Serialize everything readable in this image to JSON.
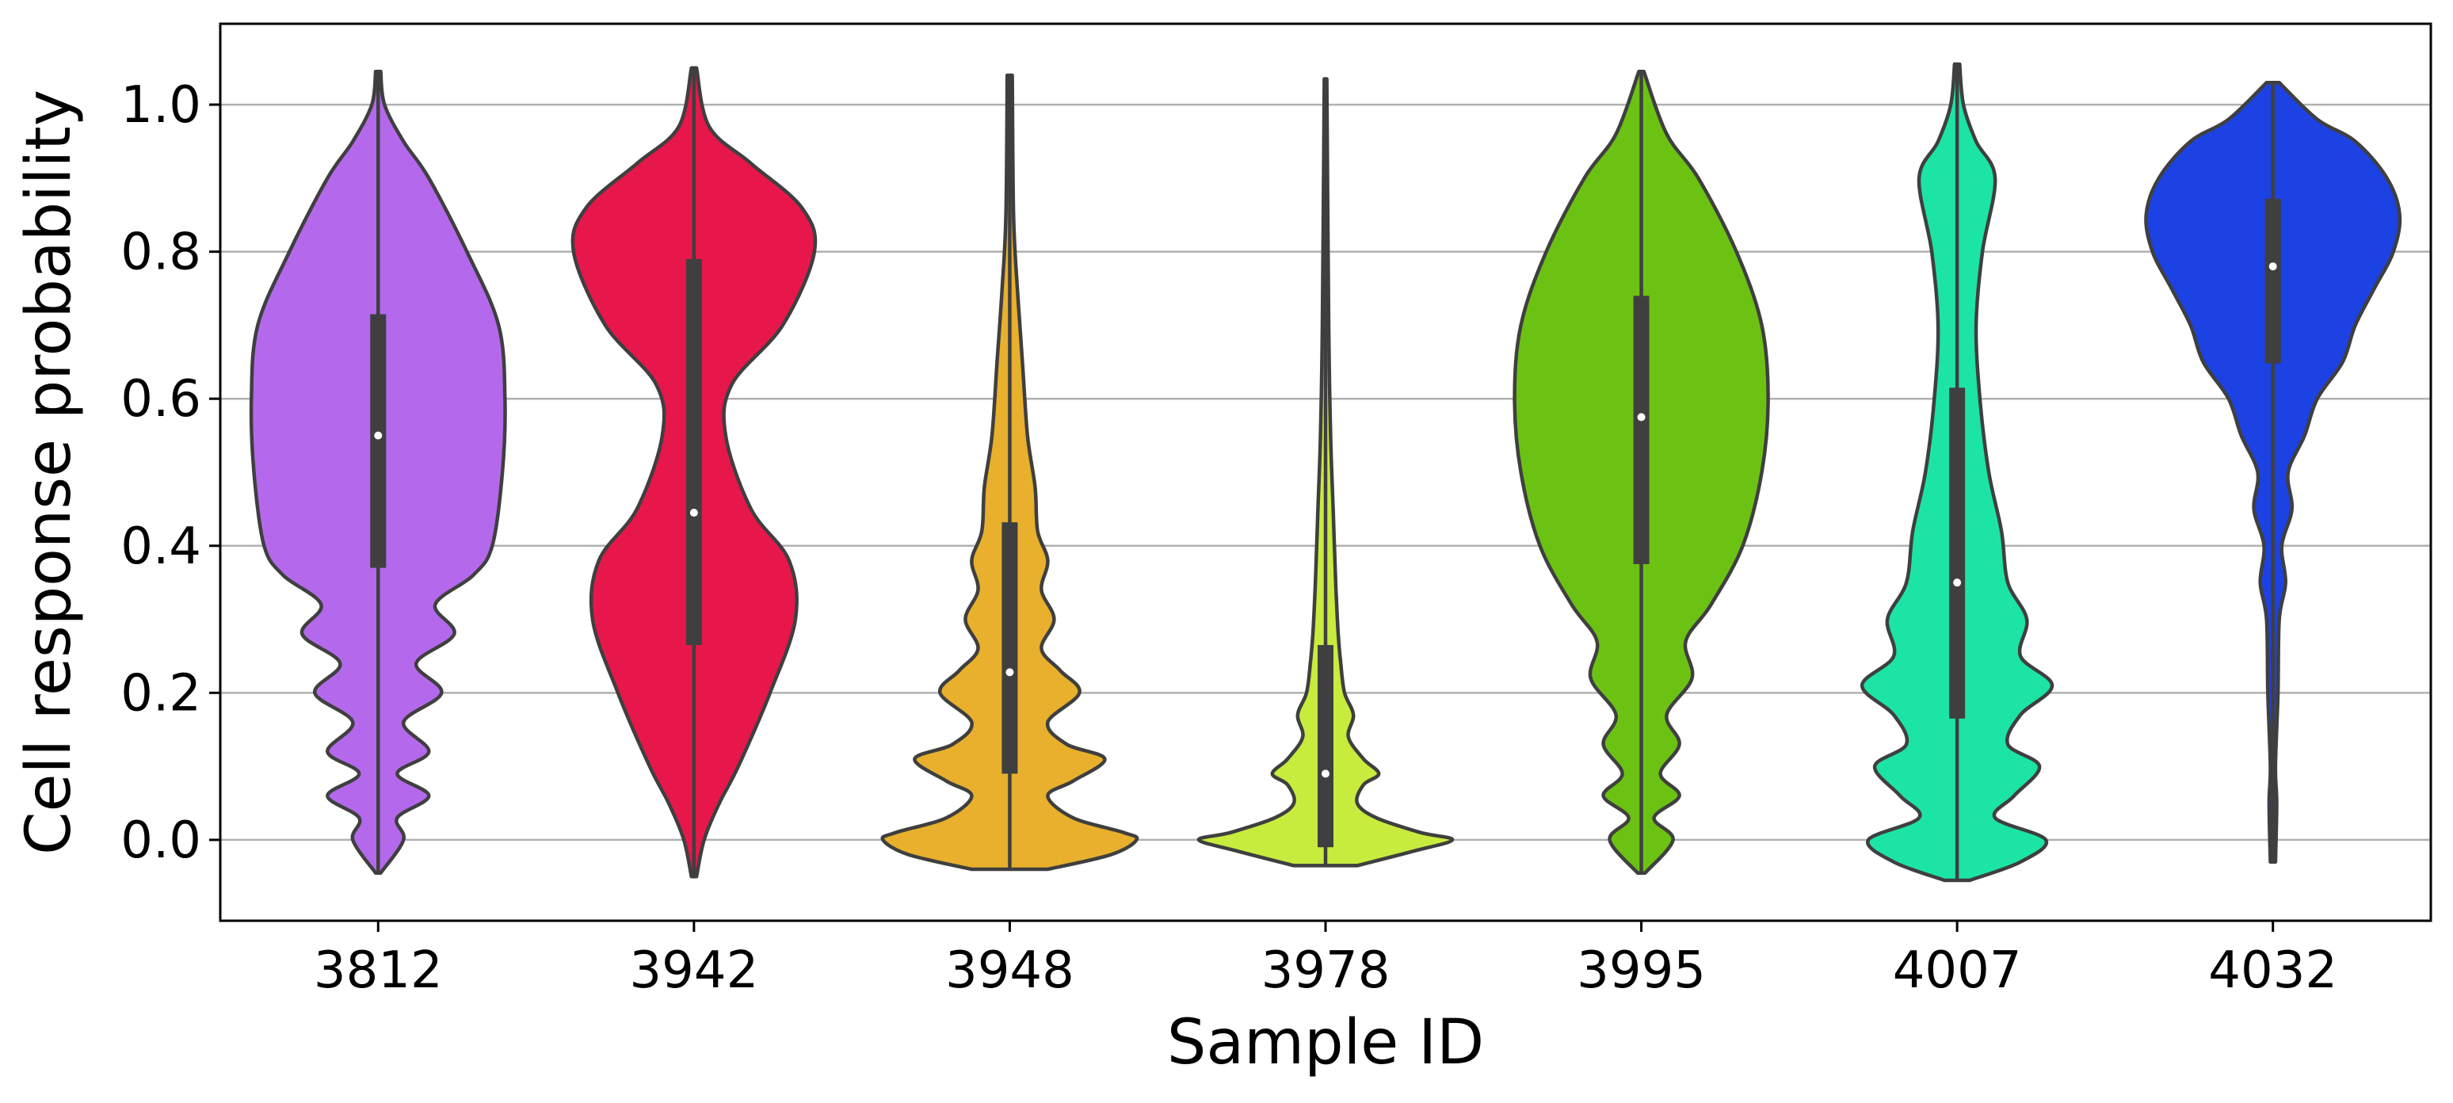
{
  "chart_data": {
    "type": "violin",
    "title": "",
    "xlabel": "Sample ID",
    "ylabel": "Cell response probability",
    "ylim": [
      -0.11,
      1.11
    ],
    "yticks": [
      0.0,
      0.2,
      0.4,
      0.6,
      0.8,
      1.0
    ],
    "ytick_labels": [
      "0.0",
      "0.2",
      "0.4",
      "0.6",
      "0.8",
      "1.0"
    ],
    "grid": "horizontal",
    "legend": "none",
    "categories": [
      "3812",
      "3942",
      "3948",
      "3978",
      "3995",
      "4007",
      "4032"
    ],
    "series": [
      {
        "category": "3812",
        "color": "#b469ec",
        "median": 0.55,
        "q1": 0.37,
        "q3": 0.715,
        "min": -0.045,
        "max": 1.045,
        "density": [
          [
            -0.045,
            0.02
          ],
          [
            0.0,
            0.2
          ],
          [
            0.03,
            0.15
          ],
          [
            0.06,
            0.4
          ],
          [
            0.09,
            0.15
          ],
          [
            0.12,
            0.4
          ],
          [
            0.16,
            0.2
          ],
          [
            0.2,
            0.5
          ],
          [
            0.24,
            0.3
          ],
          [
            0.28,
            0.6
          ],
          [
            0.32,
            0.45
          ],
          [
            0.36,
            0.75
          ],
          [
            0.4,
            0.9
          ],
          [
            0.5,
            0.98
          ],
          [
            0.6,
            1.0
          ],
          [
            0.7,
            0.95
          ],
          [
            0.8,
            0.7
          ],
          [
            0.9,
            0.4
          ],
          [
            0.95,
            0.2
          ],
          [
            1.0,
            0.05
          ],
          [
            1.045,
            0.02
          ]
        ]
      },
      {
        "category": "3942",
        "color": "#e8174b",
        "median": 0.445,
        "q1": 0.265,
        "q3": 0.79,
        "min": -0.05,
        "max": 1.05,
        "density": [
          [
            -0.05,
            0.02
          ],
          [
            0.0,
            0.08
          ],
          [
            0.05,
            0.2
          ],
          [
            0.1,
            0.35
          ],
          [
            0.2,
            0.6
          ],
          [
            0.3,
            0.8
          ],
          [
            0.38,
            0.75
          ],
          [
            0.45,
            0.45
          ],
          [
            0.55,
            0.25
          ],
          [
            0.62,
            0.3
          ],
          [
            0.7,
            0.7
          ],
          [
            0.8,
            0.95
          ],
          [
            0.86,
            0.85
          ],
          [
            0.92,
            0.45
          ],
          [
            0.97,
            0.12
          ],
          [
            1.05,
            0.02
          ]
        ]
      },
      {
        "category": "3948",
        "color": "#e8b02c",
        "median": 0.228,
        "q1": 0.09,
        "q3": 0.432,
        "min": -0.04,
        "max": 1.04,
        "density": [
          [
            -0.04,
            0.3
          ],
          [
            -0.02,
            0.8
          ],
          [
            0.0,
            1.0
          ],
          [
            0.01,
            0.9
          ],
          [
            0.03,
            0.5
          ],
          [
            0.06,
            0.3
          ],
          [
            0.08,
            0.5
          ],
          [
            0.11,
            0.75
          ],
          [
            0.13,
            0.45
          ],
          [
            0.16,
            0.3
          ],
          [
            0.2,
            0.55
          ],
          [
            0.23,
            0.4
          ],
          [
            0.26,
            0.25
          ],
          [
            0.3,
            0.35
          ],
          [
            0.34,
            0.25
          ],
          [
            0.38,
            0.3
          ],
          [
            0.42,
            0.22
          ],
          [
            0.48,
            0.2
          ],
          [
            0.55,
            0.14
          ],
          [
            0.65,
            0.1
          ],
          [
            0.75,
            0.06
          ],
          [
            0.85,
            0.03
          ],
          [
            1.04,
            0.02
          ]
        ]
      },
      {
        "category": "3978",
        "color": "#c7ec3e",
        "median": 0.09,
        "q1": -0.01,
        "q3": 0.265,
        "min": -0.035,
        "max": 1.035,
        "density": [
          [
            -0.035,
            0.25
          ],
          [
            -0.015,
            0.7
          ],
          [
            0.0,
            1.0
          ],
          [
            0.01,
            0.75
          ],
          [
            0.03,
            0.4
          ],
          [
            0.05,
            0.25
          ],
          [
            0.075,
            0.3
          ],
          [
            0.09,
            0.42
          ],
          [
            0.11,
            0.3
          ],
          [
            0.14,
            0.18
          ],
          [
            0.17,
            0.22
          ],
          [
            0.2,
            0.15
          ],
          [
            0.24,
            0.12
          ],
          [
            0.28,
            0.1
          ],
          [
            0.35,
            0.08
          ],
          [
            0.45,
            0.06
          ],
          [
            0.55,
            0.04
          ],
          [
            0.7,
            0.025
          ],
          [
            1.035,
            0.01
          ]
        ]
      },
      {
        "category": "3995",
        "color": "#6cc212",
        "median": 0.575,
        "q1": 0.375,
        "q3": 0.74,
        "min": -0.045,
        "max": 1.045,
        "density": [
          [
            -0.045,
            0.03
          ],
          [
            0.0,
            0.25
          ],
          [
            0.03,
            0.1
          ],
          [
            0.06,
            0.3
          ],
          [
            0.09,
            0.15
          ],
          [
            0.13,
            0.3
          ],
          [
            0.17,
            0.2
          ],
          [
            0.22,
            0.4
          ],
          [
            0.27,
            0.35
          ],
          [
            0.32,
            0.55
          ],
          [
            0.4,
            0.8
          ],
          [
            0.5,
            0.95
          ],
          [
            0.6,
            1.0
          ],
          [
            0.7,
            0.95
          ],
          [
            0.8,
            0.75
          ],
          [
            0.9,
            0.45
          ],
          [
            0.96,
            0.2
          ],
          [
            1.045,
            0.02
          ]
        ]
      },
      {
        "category": "4007",
        "color": "#1ce4a4",
        "median": 0.35,
        "q1": 0.165,
        "q3": 0.615,
        "min": -0.055,
        "max": 1.055,
        "density": [
          [
            -0.055,
            0.1
          ],
          [
            -0.03,
            0.5
          ],
          [
            0.0,
            0.7
          ],
          [
            0.03,
            0.3
          ],
          [
            0.06,
            0.45
          ],
          [
            0.1,
            0.65
          ],
          [
            0.13,
            0.4
          ],
          [
            0.17,
            0.5
          ],
          [
            0.21,
            0.75
          ],
          [
            0.25,
            0.5
          ],
          [
            0.3,
            0.55
          ],
          [
            0.35,
            0.4
          ],
          [
            0.42,
            0.35
          ],
          [
            0.5,
            0.25
          ],
          [
            0.6,
            0.18
          ],
          [
            0.7,
            0.15
          ],
          [
            0.8,
            0.2
          ],
          [
            0.9,
            0.3
          ],
          [
            0.95,
            0.15
          ],
          [
            1.0,
            0.05
          ],
          [
            1.055,
            0.02
          ]
        ]
      },
      {
        "category": "4032",
        "color": "#1c42e4",
        "median": 0.78,
        "q1": 0.648,
        "q3": 0.872,
        "min": -0.03,
        "max": 1.03,
        "density": [
          [
            -0.03,
            0.02
          ],
          [
            0.05,
            0.03
          ],
          [
            0.1,
            0.02
          ],
          [
            0.2,
            0.04
          ],
          [
            0.3,
            0.05
          ],
          [
            0.35,
            0.1
          ],
          [
            0.4,
            0.07
          ],
          [
            0.45,
            0.15
          ],
          [
            0.5,
            0.12
          ],
          [
            0.55,
            0.25
          ],
          [
            0.6,
            0.35
          ],
          [
            0.65,
            0.55
          ],
          [
            0.7,
            0.65
          ],
          [
            0.75,
            0.8
          ],
          [
            0.8,
            0.95
          ],
          [
            0.85,
            1.0
          ],
          [
            0.9,
            0.9
          ],
          [
            0.95,
            0.65
          ],
          [
            0.98,
            0.35
          ],
          [
            1.03,
            0.05
          ]
        ]
      }
    ]
  }
}
